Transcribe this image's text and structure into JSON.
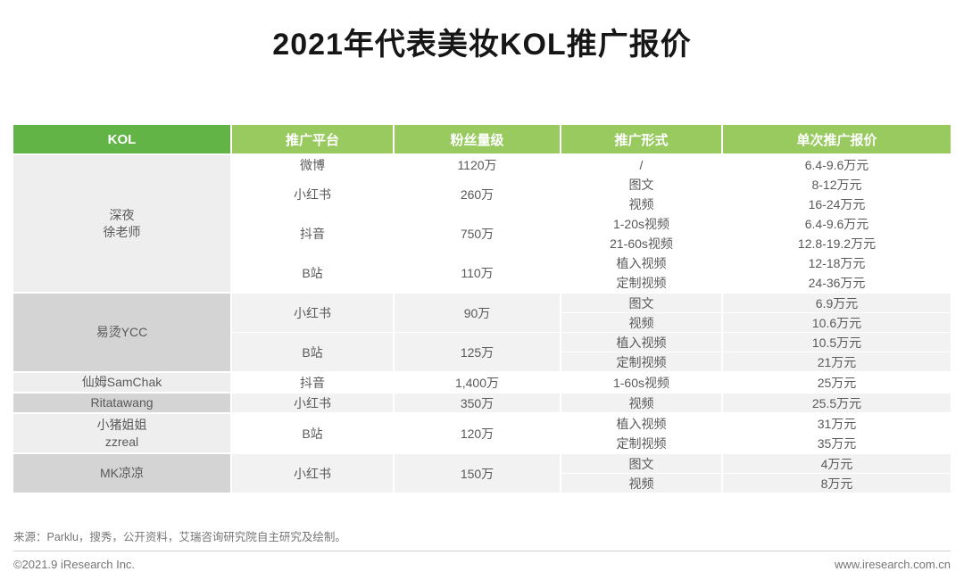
{
  "title": "2021年代表美妆KOL推广报价",
  "colors": {
    "header_green_dark": "#63B447",
    "header_green_light": "#98CA5F",
    "row_light": "#FFFFFF",
    "row_shaded": "#F2F2F2",
    "kol_cell_light": "#EEEEEE",
    "kol_cell_shaded": "#D4D4D4",
    "body_text": "#595959"
  },
  "table": {
    "headers": [
      "KOL",
      "推广平台",
      "粉丝量级",
      "推广形式",
      "单次推广报价"
    ],
    "groups": [
      {
        "kol_lines": [
          "深夜",
          "徐老师"
        ],
        "shaded": false,
        "platforms": [
          {
            "platform": "微博",
            "fans": "1120万",
            "rows": [
              {
                "form": "/",
                "price": "6.4-9.6万元"
              }
            ]
          },
          {
            "platform": "小红书",
            "fans": "260万",
            "rows": [
              {
                "form": "图文",
                "price": "8-12万元"
              },
              {
                "form": "视频",
                "price": "16-24万元"
              }
            ]
          },
          {
            "platform": "抖音",
            "fans": "750万",
            "rows": [
              {
                "form": "1-20s视频",
                "price": "6.4-9.6万元"
              },
              {
                "form": "21-60s视频",
                "price": "12.8-19.2万元"
              }
            ]
          },
          {
            "platform": "B站",
            "fans": "110万",
            "rows": [
              {
                "form": "植入视频",
                "price": "12-18万元"
              },
              {
                "form": "定制视频",
                "price": "24-36万元"
              }
            ]
          }
        ]
      },
      {
        "kol_lines": [
          "易烫YCC"
        ],
        "shaded": true,
        "platforms": [
          {
            "platform": "小红书",
            "fans": "90万",
            "rows": [
              {
                "form": "图文",
                "price": "6.9万元"
              },
              {
                "form": "视频",
                "price": "10.6万元"
              }
            ]
          },
          {
            "platform": "B站",
            "fans": "125万",
            "rows": [
              {
                "form": "植入视频",
                "price": "10.5万元"
              },
              {
                "form": "定制视频",
                "price": "21万元"
              }
            ]
          }
        ]
      },
      {
        "kol_lines": [
          "仙姆SamChak"
        ],
        "shaded": false,
        "platforms": [
          {
            "platform": "抖音",
            "fans": "1,400万",
            "rows": [
              {
                "form": "1-60s视频",
                "price": "25万元"
              }
            ]
          }
        ]
      },
      {
        "kol_lines": [
          "Ritatawang"
        ],
        "shaded": true,
        "platforms": [
          {
            "platform": "小红书",
            "fans": "350万",
            "rows": [
              {
                "form": "视频",
                "price": "25.5万元"
              }
            ]
          }
        ]
      },
      {
        "kol_lines": [
          "小猪姐姐",
          "zzreal"
        ],
        "shaded": false,
        "platforms": [
          {
            "platform": "B站",
            "fans": "120万",
            "rows": [
              {
                "form": "植入视频",
                "price": "31万元"
              },
              {
                "form": "定制视频",
                "price": "35万元"
              }
            ]
          }
        ]
      },
      {
        "kol_lines": [
          "MK凉凉"
        ],
        "shaded": true,
        "platforms": [
          {
            "platform": "小红书",
            "fans": "150万",
            "rows": [
              {
                "form": "图文",
                "price": "4万元"
              },
              {
                "form": "视频",
                "price": "8万元"
              }
            ]
          }
        ]
      }
    ]
  },
  "chart_data": {
    "type": "table",
    "title": "2021年代表美妆KOL推广报价",
    "columns": [
      "KOL",
      "推广平台",
      "粉丝量级",
      "推广形式",
      "单次推广报价"
    ],
    "rows": [
      [
        "深夜徐老师",
        "微博",
        "1120万",
        "/",
        "6.4-9.6万元"
      ],
      [
        "深夜徐老师",
        "小红书",
        "260万",
        "图文",
        "8-12万元"
      ],
      [
        "深夜徐老师",
        "小红书",
        "260万",
        "视频",
        "16-24万元"
      ],
      [
        "深夜徐老师",
        "抖音",
        "750万",
        "1-20s视频",
        "6.4-9.6万元"
      ],
      [
        "深夜徐老师",
        "抖音",
        "750万",
        "21-60s视频",
        "12.8-19.2万元"
      ],
      [
        "深夜徐老师",
        "B站",
        "110万",
        "植入视频",
        "12-18万元"
      ],
      [
        "深夜徐老师",
        "B站",
        "110万",
        "定制视频",
        "24-36万元"
      ],
      [
        "易烫YCC",
        "小红书",
        "90万",
        "图文",
        "6.9万元"
      ],
      [
        "易烫YCC",
        "小红书",
        "90万",
        "视频",
        "10.6万元"
      ],
      [
        "易烫YCC",
        "B站",
        "125万",
        "植入视频",
        "10.5万元"
      ],
      [
        "易烫YCC",
        "B站",
        "125万",
        "定制视频",
        "21万元"
      ],
      [
        "仙姆SamChak",
        "抖音",
        "1,400万",
        "1-60s视频",
        "25万元"
      ],
      [
        "Ritatawang",
        "小红书",
        "350万",
        "视频",
        "25.5万元"
      ],
      [
        "小猪姐姐zzreal",
        "B站",
        "120万",
        "植入视频",
        "31万元"
      ],
      [
        "小猪姐姐zzreal",
        "B站",
        "120万",
        "定制视频",
        "35万元"
      ],
      [
        "MK凉凉",
        "小红书",
        "150万",
        "图文",
        "4万元"
      ],
      [
        "MK凉凉",
        "小红书",
        "150万",
        "视频",
        "8万元"
      ]
    ]
  },
  "footer": {
    "source": "来源：Parklu，搜秀，公开资料，艾瑞咨询研究院自主研究及绘制。",
    "copyright": "©2021.9 iResearch Inc.",
    "website": "www.iresearch.com.cn"
  }
}
